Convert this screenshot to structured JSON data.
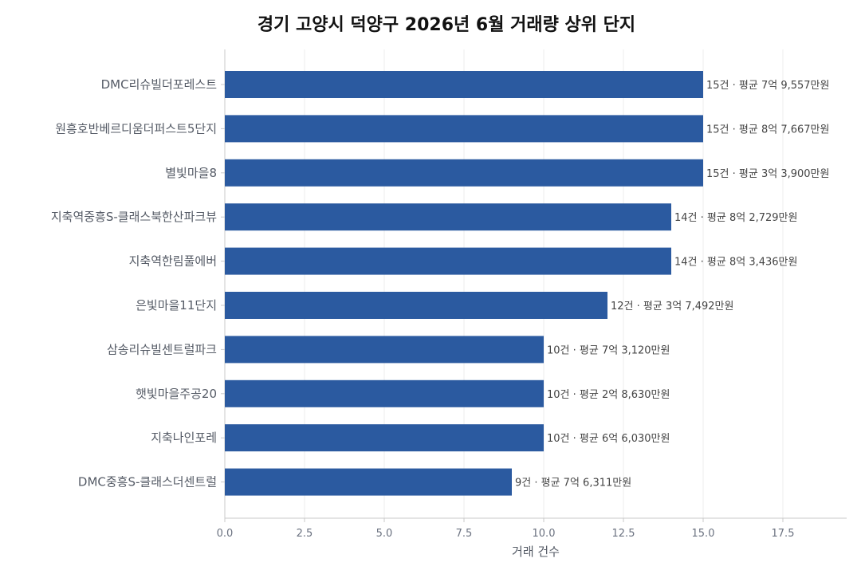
{
  "chart_data": {
    "type": "bar",
    "orientation": "horizontal",
    "title": "경기 고양시 덕양구 2026년 6월 거래량 상위 단지",
    "xlabel": "거래 건수",
    "ylabel": "",
    "xlim": [
      0,
      19.5
    ],
    "xticks": [
      "0.0",
      "2.5",
      "5.0",
      "7.5",
      "10.0",
      "12.5",
      "15.0",
      "17.5"
    ],
    "grid": "vertical",
    "bar_color": "#2b5aa0",
    "categories": [
      "DMC리슈빌더포레스트",
      "원흥호반베르디움더퍼스트5단지",
      "별빛마을8",
      "지축역중흥S-클래스북한산파크뷰",
      "지축역한림풀에버",
      "은빛마을11단지",
      "삼송리슈빌센트럴파크",
      "햇빛마을주공20",
      "지축나인포레",
      "DMC중흥S-클래스더센트럴"
    ],
    "values": [
      15,
      15,
      15,
      14,
      14,
      12,
      10,
      10,
      10,
      9
    ],
    "data_labels": [
      "15건 · 평균 7억 9,557만원",
      "15건 · 평균 8억 7,667만원",
      "15건 · 평균 3억 3,900만원",
      "14건 · 평균 8억 2,729만원",
      "14건 · 평균 8억 3,436만원",
      "12건 · 평균 3억 7,492만원",
      "10건 · 평균 7억 3,120만원",
      "10건 · 평균 2억 8,630만원",
      "10건 · 평균 6억 6,030만원",
      "9건 · 평균 7억 6,311만원"
    ]
  }
}
